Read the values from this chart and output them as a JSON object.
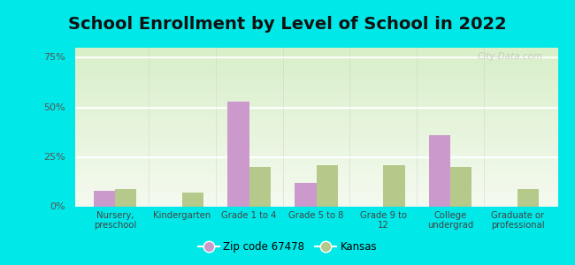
{
  "title": "School Enrollment by Level of School in 2022",
  "categories": [
    "Nursery,\npreschool",
    "Kindergarten",
    "Grade 1 to 4",
    "Grade 5 to 8",
    "Grade 9 to\n12",
    "College\nundergrad",
    "Graduate or\nprofessional"
  ],
  "zip_values": [
    8,
    0,
    53,
    12,
    0,
    36,
    0
  ],
  "kansas_values": [
    9,
    7,
    20,
    21,
    21,
    20,
    9
  ],
  "zip_color": "#cc99cc",
  "kansas_color": "#b5c98a",
  "background_outer": "#00e8e8",
  "ylim": [
    0,
    80
  ],
  "yticks": [
    0,
    25,
    50,
    75
  ],
  "ytick_labels": [
    "0%",
    "25%",
    "50%",
    "75%"
  ],
  "legend_zip_label": "Zip code 67478",
  "legend_kansas_label": "Kansas",
  "bar_width": 0.32,
  "title_fontsize": 14,
  "watermark": "City-Data.com"
}
